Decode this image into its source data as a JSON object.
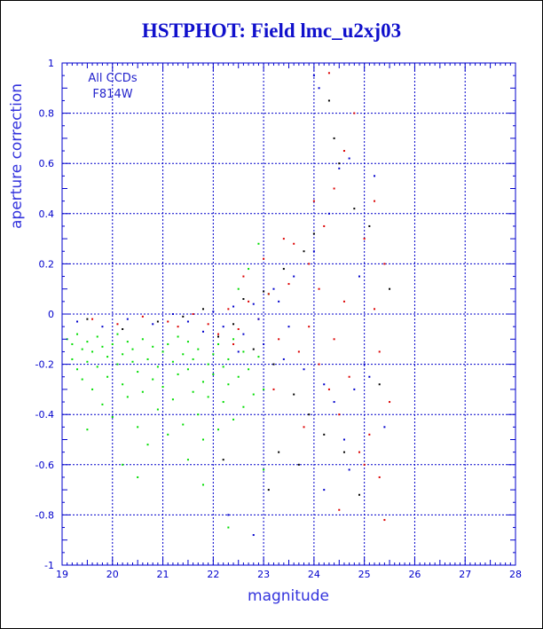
{
  "chart_data": {
    "type": "scatter",
    "title": "HSTPHOT: Field lmc_u2xj03",
    "xlabel": "magnitude",
    "ylabel": "aperture correction",
    "xlim": [
      19,
      28
    ],
    "ylim": [
      -1,
      1
    ],
    "grid": true,
    "annotations": [
      "All CCDs",
      "F814W"
    ],
    "x_ticks": [
      "19",
      "20",
      "21",
      "22",
      "23",
      "24",
      "25",
      "26",
      "27",
      "28"
    ],
    "y_ticks": [
      "-1",
      "-0.8",
      "-0.6",
      "-0.4",
      "-0.2",
      "0",
      "0.2",
      "0.4",
      "0.6",
      "0.8",
      "1"
    ],
    "series": [
      {
        "color": "#00dd00",
        "points": [
          [
            19.1,
            -0.1
          ],
          [
            19.2,
            -0.12
          ],
          [
            19.2,
            -0.18
          ],
          [
            19.3,
            -0.08
          ],
          [
            19.3,
            -0.22
          ],
          [
            19.4,
            -0.14
          ],
          [
            19.4,
            -0.26
          ],
          [
            19.5,
            -0.11
          ],
          [
            19.5,
            -0.19
          ],
          [
            19.6,
            -0.15
          ],
          [
            19.6,
            -0.3
          ],
          [
            19.7,
            -0.09
          ],
          [
            19.7,
            -0.21
          ],
          [
            19.8,
            -0.13
          ],
          [
            19.8,
            -0.36
          ],
          [
            19.9,
            -0.17
          ],
          [
            19.9,
            -0.25
          ],
          [
            20.0,
            -0.12
          ],
          [
            20.0,
            -0.41
          ],
          [
            20.1,
            -0.2
          ],
          [
            20.1,
            -0.08
          ],
          [
            20.2,
            -0.16
          ],
          [
            20.2,
            -0.28
          ],
          [
            20.3,
            -0.11
          ],
          [
            20.3,
            -0.33
          ],
          [
            20.4,
            -0.19
          ],
          [
            20.4,
            -0.14
          ],
          [
            20.5,
            -0.23
          ],
          [
            20.5,
            -0.45
          ],
          [
            20.6,
            -0.1
          ],
          [
            20.6,
            -0.31
          ],
          [
            20.7,
            -0.18
          ],
          [
            20.7,
            -0.52
          ],
          [
            20.8,
            -0.13
          ],
          [
            20.8,
            -0.26
          ],
          [
            20.9,
            -0.21
          ],
          [
            20.9,
            -0.38
          ],
          [
            21.0,
            -0.15
          ],
          [
            21.0,
            -0.29
          ],
          [
            21.1,
            -0.12
          ],
          [
            21.1,
            -0.48
          ],
          [
            21.2,
            -0.19
          ],
          [
            21.2,
            -0.34
          ],
          [
            21.3,
            -0.09
          ],
          [
            21.3,
            -0.24
          ],
          [
            21.4,
            -0.16
          ],
          [
            21.4,
            -0.44
          ],
          [
            21.5,
            -0.22
          ],
          [
            21.5,
            -0.11
          ],
          [
            21.6,
            -0.31
          ],
          [
            21.6,
            -0.18
          ],
          [
            21.7,
            -0.4
          ],
          [
            21.7,
            -0.14
          ],
          [
            21.8,
            -0.27
          ],
          [
            21.8,
            -0.5
          ],
          [
            21.9,
            -0.2
          ],
          [
            21.9,
            -0.33
          ],
          [
            22.0,
            -0.16
          ],
          [
            22.0,
            -0.24
          ],
          [
            22.1,
            -0.12
          ],
          [
            22.1,
            -0.46
          ],
          [
            22.2,
            -0.21
          ],
          [
            22.2,
            -0.35
          ],
          [
            22.3,
            -0.18
          ],
          [
            22.3,
            -0.28
          ],
          [
            22.4,
            -0.1
          ],
          [
            22.4,
            -0.42
          ],
          [
            22.5,
            -0.25
          ],
          [
            22.6,
            -0.15
          ],
          [
            22.6,
            -0.37
          ],
          [
            22.7,
            -0.22
          ],
          [
            22.8,
            -0.32
          ],
          [
            22.9,
            -0.17
          ],
          [
            23.0,
            -0.3
          ],
          [
            22.5,
            0.1
          ],
          [
            22.7,
            0.18
          ],
          [
            22.9,
            0.28
          ],
          [
            23.1,
            0.08
          ],
          [
            20.5,
            -0.65
          ],
          [
            21.5,
            -0.58
          ],
          [
            22.3,
            -0.85
          ],
          [
            23.0,
            -0.62
          ],
          [
            19.5,
            -0.46
          ],
          [
            20.2,
            -0.6
          ],
          [
            21.8,
            -0.68
          ]
        ]
      },
      {
        "color": "#dd0000",
        "points": [
          [
            19.6,
            -0.02
          ],
          [
            20.1,
            -0.04
          ],
          [
            20.6,
            -0.01
          ],
          [
            21.1,
            -0.03
          ],
          [
            21.3,
            -0.05
          ],
          [
            21.6,
            0.0
          ],
          [
            21.9,
            -0.04
          ],
          [
            22.1,
            -0.08
          ],
          [
            22.3,
            0.02
          ],
          [
            22.5,
            -0.06
          ],
          [
            22.7,
            0.05
          ],
          [
            22.9,
            -0.02
          ],
          [
            23.1,
            0.08
          ],
          [
            23.3,
            -0.1
          ],
          [
            23.5,
            0.12
          ],
          [
            23.7,
            -0.15
          ],
          [
            23.9,
            0.2
          ],
          [
            24.1,
            -0.2
          ],
          [
            24.2,
            0.35
          ],
          [
            24.3,
            -0.3
          ],
          [
            24.4,
            0.5
          ],
          [
            24.5,
            -0.4
          ],
          [
            24.6,
            0.65
          ],
          [
            24.7,
            -0.25
          ],
          [
            24.8,
            0.8
          ],
          [
            24.9,
            -0.55
          ],
          [
            25.0,
            0.3
          ],
          [
            25.1,
            -0.48
          ],
          [
            25.2,
            0.45
          ],
          [
            25.3,
            -0.65
          ],
          [
            25.4,
            0.2
          ],
          [
            25.5,
            -0.35
          ],
          [
            24.0,
            0.45
          ],
          [
            24.3,
            0.96
          ],
          [
            23.6,
            0.28
          ],
          [
            23.2,
            -0.3
          ],
          [
            23.8,
            -0.45
          ],
          [
            24.5,
            -0.78
          ],
          [
            25.0,
            -0.6
          ],
          [
            25.4,
            -0.82
          ],
          [
            22.6,
            0.15
          ],
          [
            22.4,
            -0.12
          ],
          [
            23.0,
            0.22
          ],
          [
            23.4,
            0.3
          ],
          [
            24.1,
            0.1
          ],
          [
            24.6,
            0.05
          ],
          [
            25.2,
            0.02
          ],
          [
            23.9,
            -0.05
          ],
          [
            24.4,
            -0.1
          ],
          [
            25.3,
            -0.15
          ]
        ]
      },
      {
        "color": "#0000cc",
        "points": [
          [
            19.3,
            -0.03
          ],
          [
            19.8,
            -0.05
          ],
          [
            20.3,
            -0.02
          ],
          [
            20.8,
            -0.04
          ],
          [
            21.2,
            0.0
          ],
          [
            21.5,
            -0.03
          ],
          [
            21.8,
            -0.07
          ],
          [
            22.0,
            0.01
          ],
          [
            22.2,
            -0.05
          ],
          [
            22.4,
            0.03
          ],
          [
            22.6,
            -0.08
          ],
          [
            22.8,
            0.04
          ],
          [
            23.0,
            -0.12
          ],
          [
            23.2,
            0.1
          ],
          [
            23.4,
            -0.18
          ],
          [
            23.6,
            0.15
          ],
          [
            23.8,
            -0.22
          ],
          [
            24.0,
            0.25
          ],
          [
            24.1,
            0.9
          ],
          [
            24.2,
            -0.28
          ],
          [
            24.3,
            0.4
          ],
          [
            24.4,
            -0.35
          ],
          [
            24.5,
            0.58
          ],
          [
            24.6,
            -0.5
          ],
          [
            24.7,
            0.62
          ],
          [
            24.8,
            -0.3
          ],
          [
            24.9,
            0.15
          ],
          [
            25.0,
            -0.2
          ],
          [
            25.2,
            0.55
          ],
          [
            25.4,
            -0.45
          ],
          [
            23.5,
            -0.05
          ],
          [
            23.3,
            0.05
          ],
          [
            22.9,
            -0.02
          ],
          [
            22.5,
            -0.15
          ],
          [
            22.3,
            -0.8
          ],
          [
            22.8,
            -0.88
          ],
          [
            24.2,
            -0.7
          ],
          [
            24.7,
            -0.62
          ],
          [
            25.1,
            -0.25
          ],
          [
            24.0,
            0.95
          ]
        ]
      },
      {
        "color": "#000000",
        "points": [
          [
            19.5,
            -0.02
          ],
          [
            20.2,
            -0.06
          ],
          [
            20.9,
            -0.03
          ],
          [
            21.4,
            -0.01
          ],
          [
            21.8,
            0.02
          ],
          [
            22.1,
            -0.09
          ],
          [
            22.4,
            -0.04
          ],
          [
            22.6,
            0.06
          ],
          [
            22.8,
            -0.14
          ],
          [
            23.0,
            0.09
          ],
          [
            23.2,
            -0.2
          ],
          [
            23.4,
            0.18
          ],
          [
            23.6,
            -0.32
          ],
          [
            23.8,
            0.25
          ],
          [
            23.9,
            -0.4
          ],
          [
            24.0,
            0.32
          ],
          [
            24.2,
            -0.48
          ],
          [
            24.3,
            0.85
          ],
          [
            24.5,
            0.6
          ],
          [
            24.6,
            -0.55
          ],
          [
            24.8,
            0.42
          ],
          [
            24.9,
            -0.72
          ],
          [
            25.1,
            0.35
          ],
          [
            25.3,
            -0.28
          ],
          [
            25.5,
            0.1
          ],
          [
            23.3,
            -0.55
          ],
          [
            23.7,
            -0.6
          ],
          [
            24.4,
            0.7
          ],
          [
            22.2,
            -0.58
          ],
          [
            23.1,
            -0.7
          ]
        ]
      }
    ]
  }
}
